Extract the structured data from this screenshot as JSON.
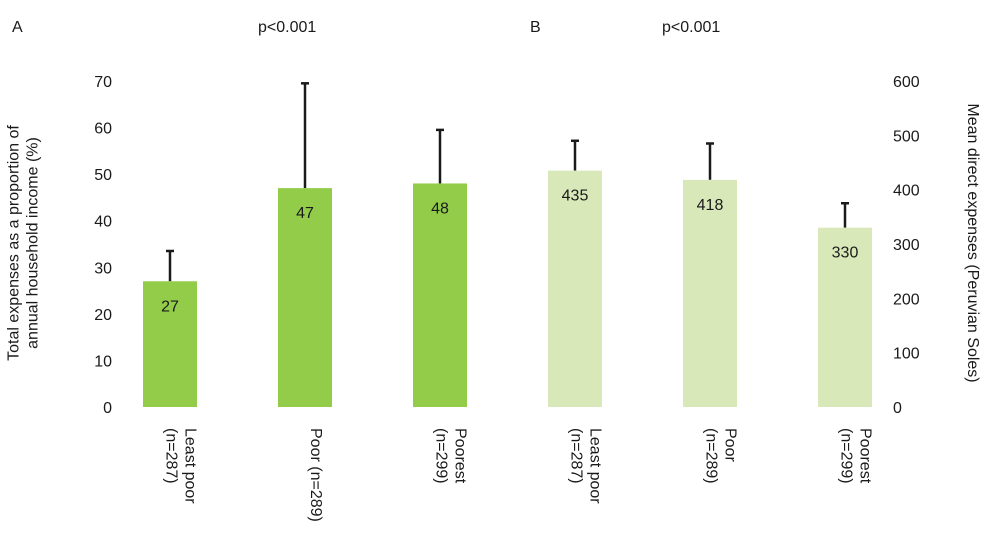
{
  "chart_data": [
    {
      "type": "bar",
      "panel_label": "A",
      "annotation": "p<0.001",
      "categories": [
        "Least poor\n(n=287)",
        "Poor (n=289)",
        "Poorest\n(n=299)"
      ],
      "series": [
        {
          "values": [
            27,
            47,
            48
          ],
          "errors_upper": [
            33.5,
            69.5,
            59.5
          ],
          "color": "#92cc49"
        }
      ],
      "data_labels": [
        "27",
        "47",
        "48"
      ],
      "ylabel": "Total expenses as a proportion of\nannual household income (%)",
      "ylim": [
        0,
        70
      ],
      "yticks": [
        0,
        10,
        20,
        30,
        40,
        50,
        60,
        70
      ],
      "y_axis_side": "left",
      "grid": false,
      "legend": "none"
    },
    {
      "type": "bar",
      "panel_label": "B",
      "annotation": "p<0.001",
      "categories": [
        "Least poor\n(n=287)",
        "Poor\n(n=289)",
        "Poorest\n(n=299)"
      ],
      "series": [
        {
          "values": [
            435,
            418,
            330
          ],
          "errors_upper": [
            490,
            485,
            375
          ],
          "color": "#d8e8b9"
        }
      ],
      "data_labels": [
        "435",
        "418",
        "330"
      ],
      "ylabel": "Mean direct expenses (Peruvian Soles)",
      "ylim": [
        0,
        600
      ],
      "yticks": [
        0,
        100,
        200,
        300,
        400,
        500,
        600
      ],
      "y_axis_side": "right",
      "grid": false,
      "legend": "none"
    }
  ]
}
